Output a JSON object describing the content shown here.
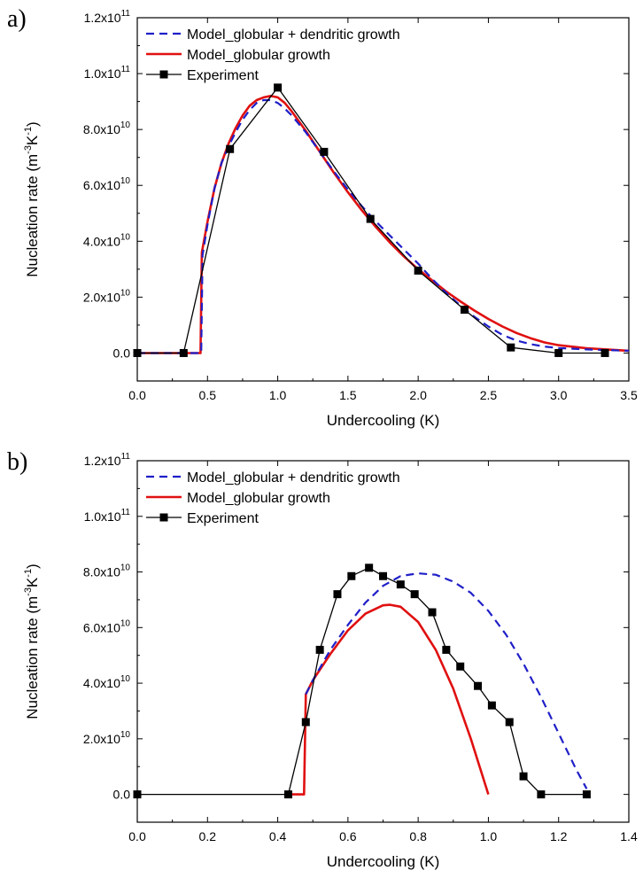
{
  "chart_data": [
    {
      "type": "line",
      "panel_label": "a)",
      "xlabel": "Undercooling (K)",
      "ylabel_main": "Nucleation rate (m",
      "ylabel_sup1": "-3",
      "ylabel_mid": "K",
      "ylabel_sup2": "-1",
      "ylabel_end": ")",
      "xlim": [
        0,
        3.5
      ],
      "ylim": [
        -10000000000.0,
        120000000000.0
      ],
      "x_ticks": [
        {
          "value": 0.0,
          "label": "0.0"
        },
        {
          "value": 0.5,
          "label": "0.5"
        },
        {
          "value": 1.0,
          "label": "1.0"
        },
        {
          "value": 1.5,
          "label": "1.5"
        },
        {
          "value": 2.0,
          "label": "2.0"
        },
        {
          "value": 2.5,
          "label": "2.5"
        },
        {
          "value": 3.0,
          "label": "3.0"
        },
        {
          "value": 3.5,
          "label": "3.5"
        }
      ],
      "y_ticks": [
        {
          "value": 0,
          "label": "0.0",
          "exp": ""
        },
        {
          "value": 20000000000.0,
          "label": "2.0x10",
          "exp": "10"
        },
        {
          "value": 40000000000.0,
          "label": "4.0x10",
          "exp": "10"
        },
        {
          "value": 60000000000.0,
          "label": "6.0x10",
          "exp": "10"
        },
        {
          "value": 80000000000.0,
          "label": "8.0x10",
          "exp": "10"
        },
        {
          "value": 100000000000.0,
          "label": "1.0x10",
          "exp": "11"
        },
        {
          "value": 120000000000.0,
          "label": "1.2x10",
          "exp": "11"
        }
      ],
      "legend_position": "top-left",
      "series": [
        {
          "name": "Model_globular + dendritic growth",
          "style": "dashed",
          "color": "#1f1fc8",
          "x": [
            0,
            0.455,
            0.465,
            0.5,
            0.55,
            0.6,
            0.65,
            0.7,
            0.75,
            0.8,
            0.85,
            0.9,
            0.95,
            1.0,
            1.05,
            1.1,
            1.2,
            1.3,
            1.4,
            1.5,
            1.6,
            1.7,
            1.8,
            1.9,
            2.0,
            2.1,
            2.2,
            2.3,
            2.4,
            2.5,
            2.6,
            2.7,
            2.8,
            2.9,
            3.0,
            3.2,
            3.5
          ],
          "y": [
            0,
            0,
            35000000000.0,
            46000000000.0,
            59000000000.0,
            68000000000.0,
            74000000000.0,
            79000000000.0,
            83500000000.0,
            87000000000.0,
            89500000000.0,
            90500000000.0,
            90500000000.0,
            89500000000.0,
            87500000000.0,
            85000000000.0,
            79000000000.0,
            72000000000.0,
            65000000000.0,
            58500000000.0,
            52500000000.0,
            47000000000.0,
            42000000000.0,
            37000000000.0,
            32000000000.0,
            26500000000.0,
            21500000000.0,
            17000000000.0,
            13000000000.0,
            9500000000.0,
            6500000000.0,
            4500000000.0,
            3200000000.0,
            2300000000.0,
            1800000000.0,
            1300000000.0,
            800000000.0
          ]
        },
        {
          "name": "Model_globular growth",
          "style": "solid",
          "color": "#e01010",
          "x": [
            0,
            0.45,
            0.46,
            0.5,
            0.55,
            0.6,
            0.65,
            0.7,
            0.75,
            0.8,
            0.85,
            0.9,
            0.95,
            1.0,
            1.05,
            1.1,
            1.2,
            1.3,
            1.4,
            1.5,
            1.6,
            1.7,
            1.8,
            1.9,
            2.0,
            2.1,
            2.2,
            2.3,
            2.4,
            2.5,
            2.6,
            2.7,
            2.8,
            2.9,
            3.0,
            3.2,
            3.5
          ],
          "y": [
            0,
            0,
            36000000000.0,
            47000000000.0,
            59000000000.0,
            68000000000.0,
            75000000000.0,
            80500000000.0,
            85000000000.0,
            88500000000.0,
            90500000000.0,
            91500000000.0,
            92000000000.0,
            91500000000.0,
            89500000000.0,
            86500000000.0,
            79500000000.0,
            72000000000.0,
            64500000000.0,
            57500000000.0,
            51000000000.0,
            45000000000.0,
            39500000000.0,
            34500000000.0,
            30000000000.0,
            26000000000.0,
            22000000000.0,
            18500000000.0,
            15200000000.0,
            12200000000.0,
            9500000000.0,
            7200000000.0,
            5300000000.0,
            3800000000.0,
            2800000000.0,
            1700000000.0,
            800000000.0
          ]
        },
        {
          "name": "Experiment",
          "style": "line-marker",
          "color": "#000000",
          "x": [
            0,
            0.33,
            0.66,
            1.0,
            1.33,
            1.66,
            2.0,
            2.33,
            2.66,
            3.0,
            3.33
          ],
          "y": [
            0,
            0,
            73000000000.0,
            95000000000.0,
            72000000000.0,
            48000000000.0,
            29500000000.0,
            15500000000.0,
            2000000000.0,
            0,
            0
          ]
        }
      ]
    },
    {
      "type": "line",
      "panel_label": "b)",
      "xlabel": "Undercooling (K)",
      "ylabel_main": "Nucleation rate (m",
      "ylabel_sup1": "-3",
      "ylabel_mid": "K",
      "ylabel_sup2": "-1",
      "ylabel_end": ")",
      "xlim": [
        0,
        1.4
      ],
      "ylim": [
        -10000000000.0,
        120000000000.0
      ],
      "x_ticks": [
        {
          "value": 0.0,
          "label": "0.0"
        },
        {
          "value": 0.2,
          "label": "0.2"
        },
        {
          "value": 0.4,
          "label": "0.4"
        },
        {
          "value": 0.6,
          "label": "0.6"
        },
        {
          "value": 0.8,
          "label": "0.8"
        },
        {
          "value": 1.0,
          "label": "1.0"
        },
        {
          "value": 1.2,
          "label": "1.2"
        },
        {
          "value": 1.4,
          "label": "1.4"
        }
      ],
      "y_ticks": [
        {
          "value": 0,
          "label": "0.0",
          "exp": ""
        },
        {
          "value": 20000000000.0,
          "label": "2.0x10",
          "exp": "10"
        },
        {
          "value": 40000000000.0,
          "label": "4.0x10",
          "exp": "10"
        },
        {
          "value": 60000000000.0,
          "label": "6.0x10",
          "exp": "10"
        },
        {
          "value": 80000000000.0,
          "label": "8.0x10",
          "exp": "10"
        },
        {
          "value": 100000000000.0,
          "label": "1.0x10",
          "exp": "11"
        },
        {
          "value": 120000000000.0,
          "label": "1.2x10",
          "exp": "11"
        }
      ],
      "legend_position": "top-left",
      "series": [
        {
          "name": "Model_globular + dendritic growth",
          "style": "dashed",
          "color": "#1f1fc8",
          "x": [
            0.48,
            0.5,
            0.55,
            0.6,
            0.65,
            0.7,
            0.75,
            0.8,
            0.85,
            0.9,
            0.95,
            1.0,
            1.05,
            1.1,
            1.15,
            1.2,
            1.25,
            1.28
          ],
          "y": [
            36000000000.0,
            41000000000.0,
            52000000000.0,
            61000000000.0,
            69000000000.0,
            75000000000.0,
            78500000000.0,
            79500000000.0,
            79000000000.0,
            76500000000.0,
            72500000000.0,
            66000000000.0,
            57500000000.0,
            47000000000.0,
            35000000000.0,
            22000000000.0,
            9000000000.0,
            2000000000.0
          ]
        },
        {
          "name": "Model_globular growth",
          "style": "solid",
          "color": "#e01010",
          "x": [
            0.43,
            0.475,
            0.48,
            0.5,
            0.55,
            0.6,
            0.65,
            0.7,
            0.72,
            0.75,
            0.8,
            0.85,
            0.9,
            0.95,
            1.0
          ],
          "y": [
            0,
            0,
            36000000000.0,
            41000000000.0,
            50500000000.0,
            59000000000.0,
            65000000000.0,
            68000000000.0,
            68200000000.0,
            67500000000.0,
            62000000000.0,
            52000000000.0,
            38000000000.0,
            20000000000.0,
            0
          ]
        },
        {
          "name": "Experiment",
          "style": "line-marker",
          "color": "#000000",
          "x": [
            0,
            0.43,
            0.48,
            0.52,
            0.57,
            0.61,
            0.66,
            0.7,
            0.75,
            0.79,
            0.84,
            0.88,
            0.92,
            0.97,
            1.01,
            1.06,
            1.1,
            1.15,
            1.28
          ],
          "y": [
            0,
            0,
            26000000000.0,
            52000000000.0,
            72000000000.0,
            78500000000.0,
            81500000000.0,
            78500000000.0,
            75500000000.0,
            72000000000.0,
            65500000000.0,
            52000000000.0,
            46000000000.0,
            39000000000.0,
            32000000000.0,
            26000000000.0,
            6500000000.0,
            0,
            0
          ]
        }
      ]
    }
  ]
}
